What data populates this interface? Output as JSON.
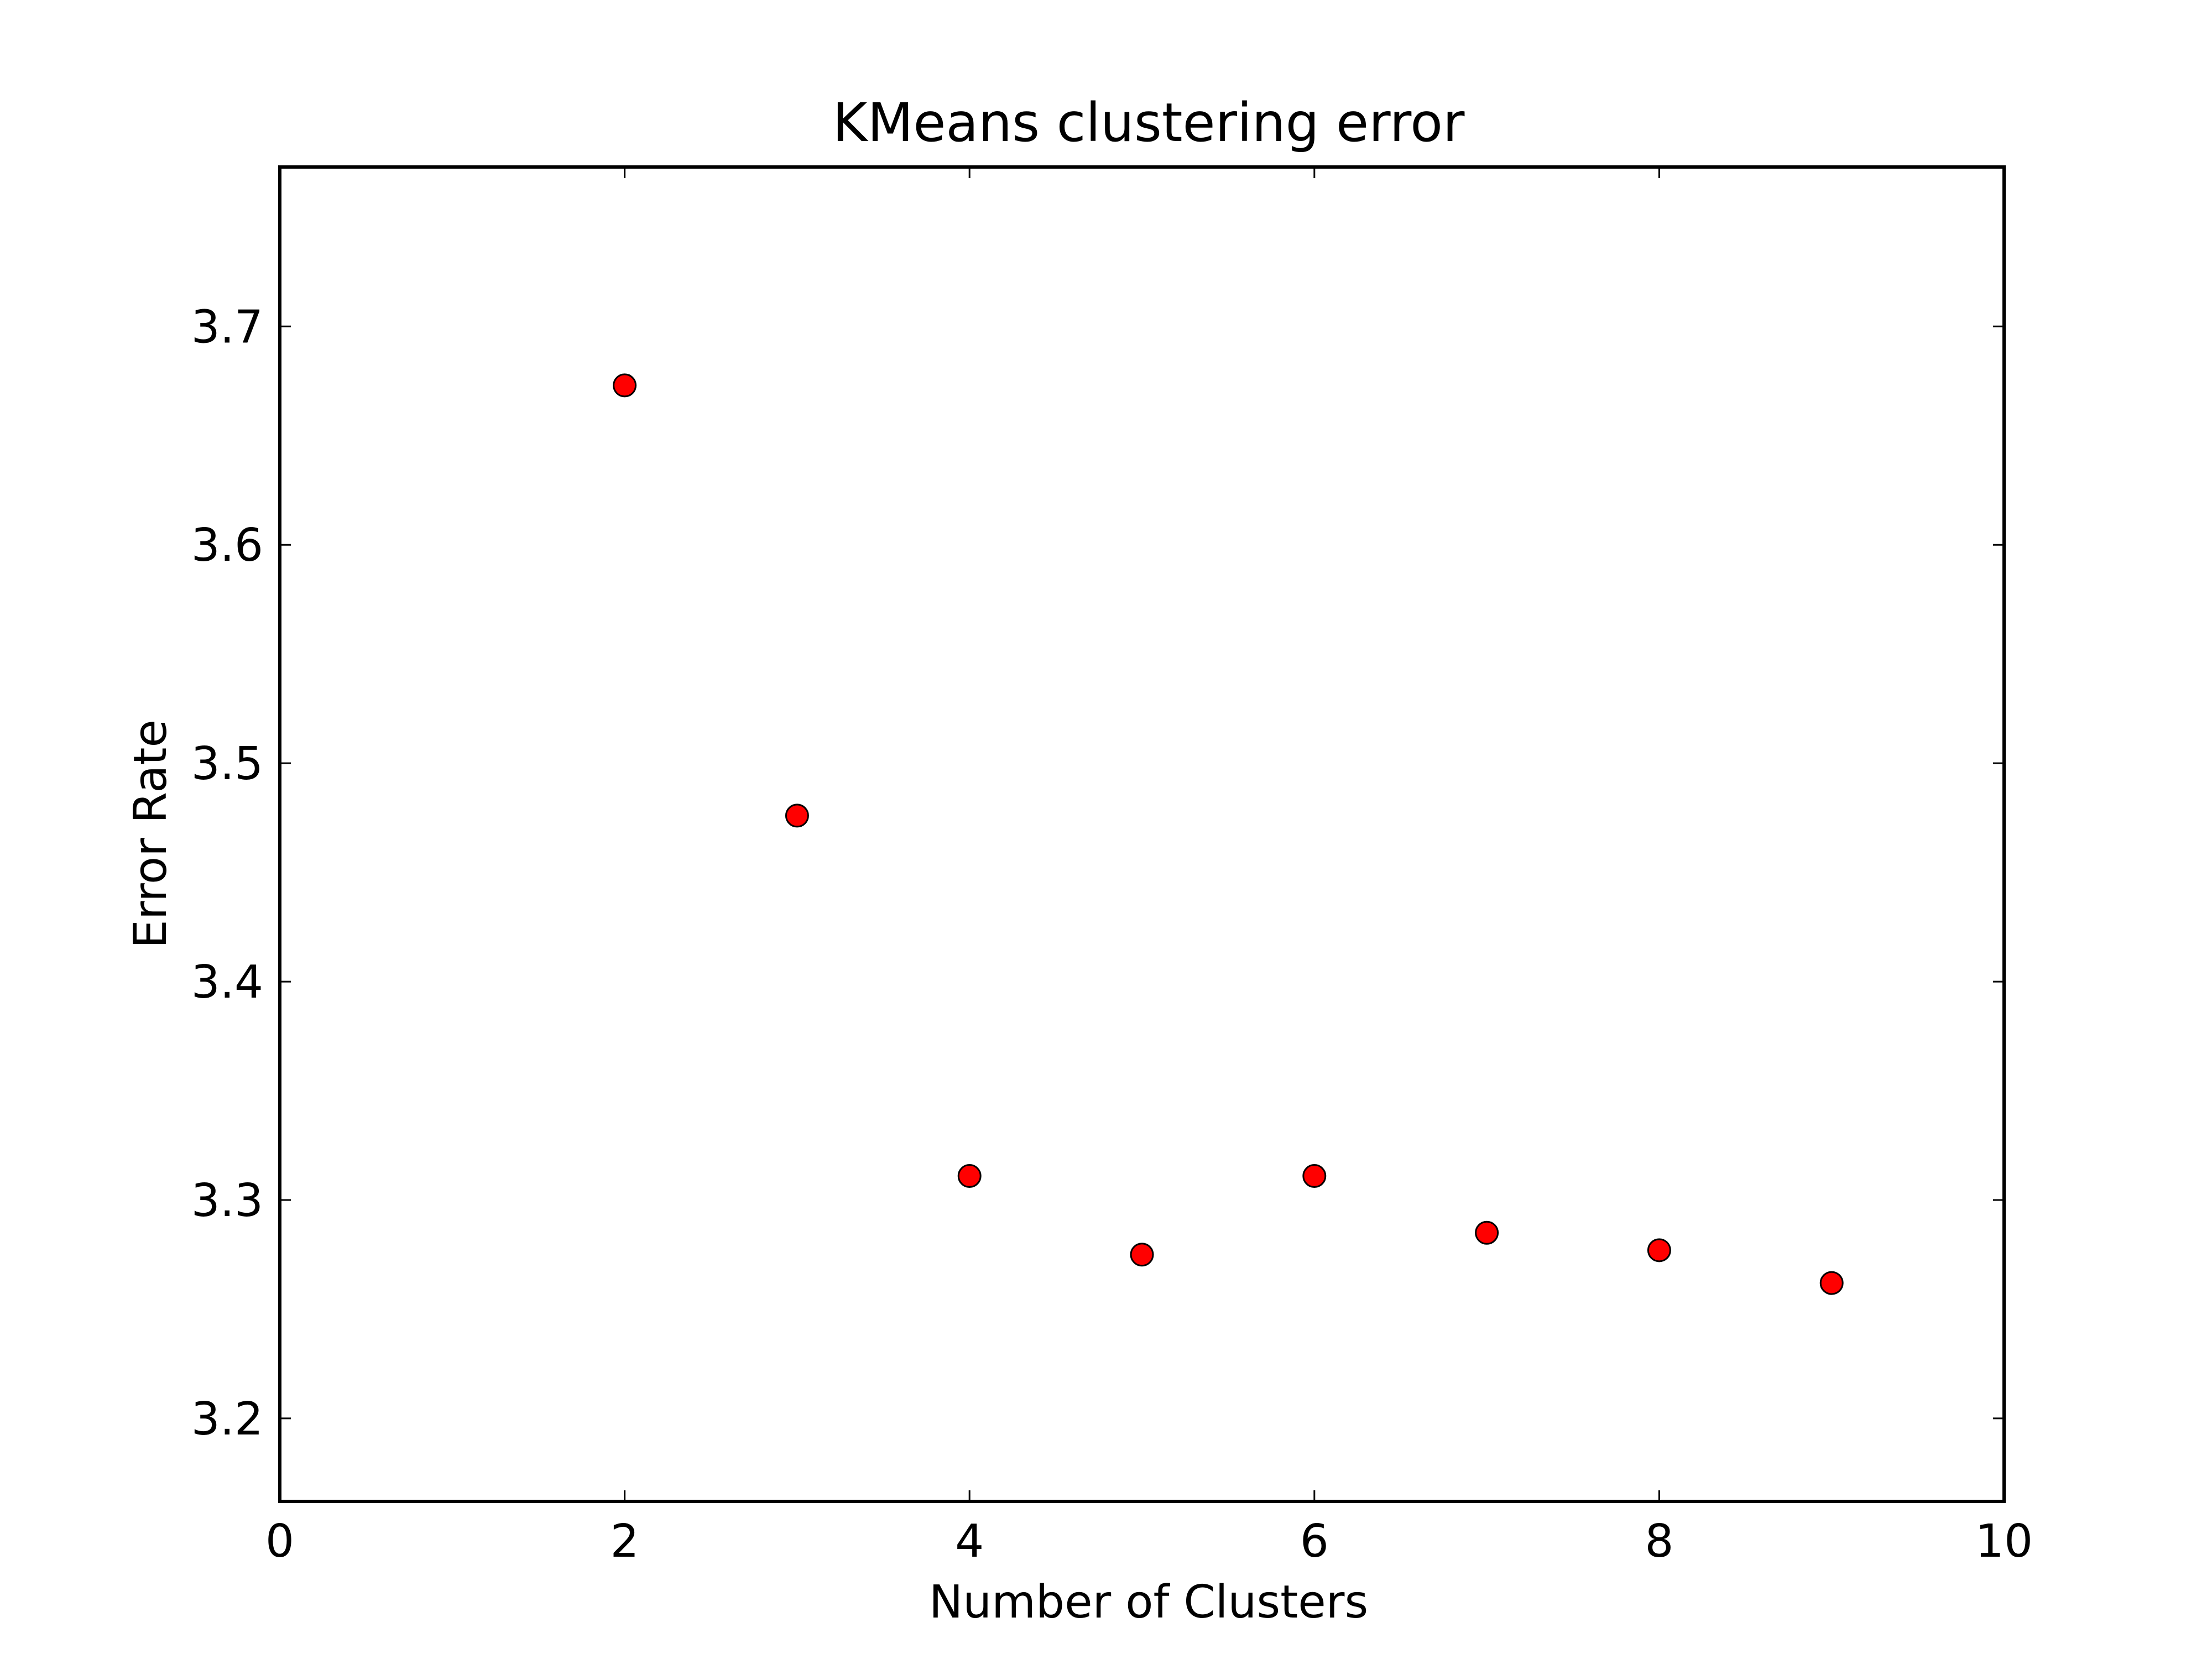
{
  "chart_data": {
    "type": "scatter",
    "title": "KMeans clustering error",
    "xlabel": "Number of Clusters",
    "ylabel": "Error Rate",
    "xlim": [
      0,
      10
    ],
    "ylim": [
      3.162,
      3.773
    ],
    "xticks": [
      0,
      2,
      4,
      6,
      8,
      10
    ],
    "xtick_labels": [
      "0",
      "2",
      "4",
      "6",
      "8",
      "10"
    ],
    "yticks": [
      3.2,
      3.3,
      3.4,
      3.5,
      3.6,
      3.7
    ],
    "ytick_labels": [
      "3.2",
      "3.3",
      "3.4",
      "3.5",
      "3.6",
      "3.7"
    ],
    "grid": false,
    "legend": "none",
    "marker_color": "#ff0000",
    "marker_edge_color": "#000000",
    "series": [
      {
        "x": [
          2,
          3,
          4,
          5,
          6,
          7,
          8,
          9
        ],
        "y": [
          3.673,
          3.476,
          3.311,
          3.275,
          3.311,
          3.285,
          3.277,
          3.262
        ]
      }
    ]
  }
}
